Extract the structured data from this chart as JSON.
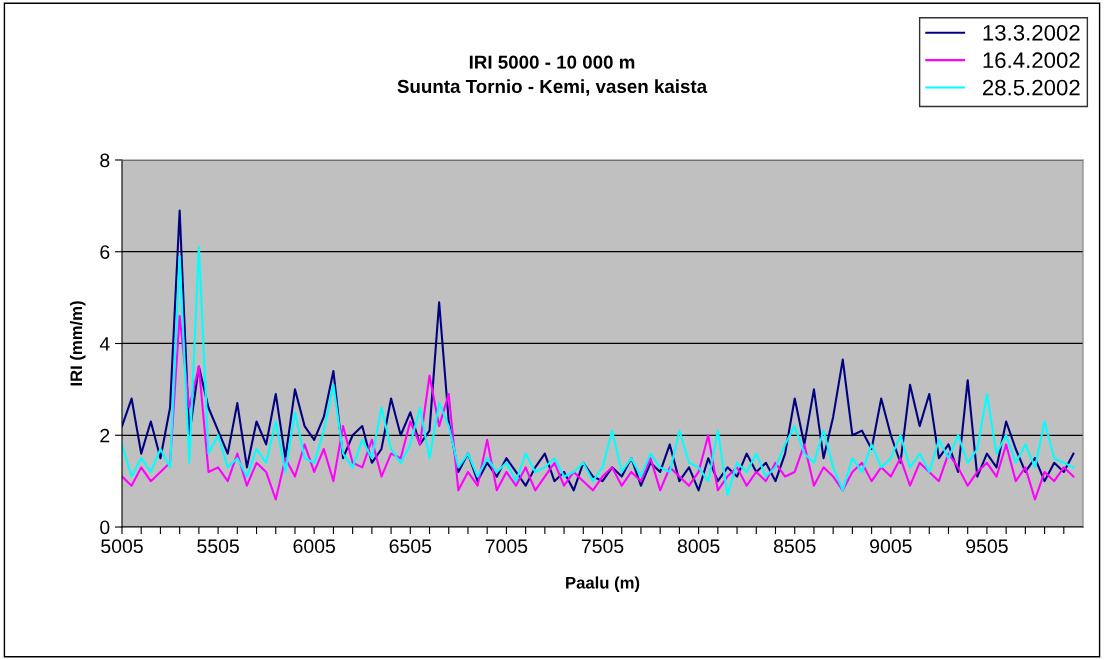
{
  "chart_data": {
    "type": "line",
    "title": "IRI 5000 - 10 000 m\nSuunta Tornio - Kemi, vasen kaista",
    "xlabel": "Paalu (m)",
    "ylabel": "IRI (mm/m)",
    "x": [
      5005,
      5055,
      5105,
      5155,
      5205,
      5255,
      5305,
      5355,
      5405,
      5455,
      5505,
      5555,
      5605,
      5655,
      5705,
      5755,
      5805,
      5855,
      5905,
      5955,
      6005,
      6055,
      6105,
      6155,
      6205,
      6255,
      6305,
      6355,
      6405,
      6455,
      6505,
      6555,
      6605,
      6655,
      6705,
      6755,
      6805,
      6855,
      6905,
      6955,
      7005,
      7055,
      7105,
      7155,
      7205,
      7255,
      7305,
      7355,
      7405,
      7455,
      7505,
      7555,
      7605,
      7655,
      7705,
      7755,
      7805,
      7855,
      7905,
      7955,
      8005,
      8055,
      8105,
      8155,
      8205,
      8255,
      8305,
      8355,
      8405,
      8455,
      8505,
      8555,
      8605,
      8655,
      8705,
      8755,
      8805,
      8855,
      8905,
      8955,
      9005,
      9055,
      9105,
      9155,
      9205,
      9255,
      9305,
      9355,
      9405,
      9455,
      9505,
      9555,
      9605,
      9655,
      9705,
      9755,
      9805,
      9855,
      9905,
      9955
    ],
    "series": [
      {
        "name": "13.3.2002",
        "color": "#000080",
        "values": [
          2.2,
          2.8,
          1.6,
          2.3,
          1.5,
          2.6,
          6.9,
          2.0,
          3.5,
          2.6,
          2.1,
          1.6,
          2.7,
          1.3,
          2.3,
          1.8,
          2.9,
          1.5,
          3.0,
          2.2,
          1.9,
          2.4,
          3.4,
          1.5,
          2.0,
          2.2,
          1.4,
          1.7,
          2.8,
          2.0,
          2.5,
          1.8,
          2.1,
          4.9,
          2.3,
          1.2,
          1.6,
          1.0,
          1.4,
          1.1,
          1.5,
          1.2,
          0.9,
          1.3,
          1.6,
          1.0,
          1.2,
          0.8,
          1.4,
          1.1,
          1.0,
          1.3,
          1.1,
          1.5,
          0.9,
          1.4,
          1.2,
          1.8,
          1.0,
          1.3,
          0.8,
          1.5,
          1.0,
          1.3,
          1.1,
          1.6,
          1.2,
          1.4,
          1.0,
          1.6,
          2.8,
          1.8,
          3.0,
          1.5,
          2.4,
          3.65,
          2.0,
          2.1,
          1.7,
          2.8,
          2.0,
          1.4,
          3.1,
          2.2,
          2.9,
          1.5,
          1.8,
          1.2,
          3.2,
          1.1,
          1.6,
          1.3,
          2.3,
          1.7,
          1.2,
          1.5,
          1.0,
          1.4,
          1.2,
          1.6
        ]
      },
      {
        "name": "16.4.2002",
        "color": "#ff00ff",
        "values": [
          1.1,
          0.9,
          1.3,
          1.0,
          1.2,
          1.4,
          4.6,
          2.6,
          3.5,
          1.2,
          1.3,
          1.0,
          1.6,
          0.9,
          1.4,
          1.2,
          0.6,
          1.5,
          1.1,
          1.8,
          1.2,
          1.7,
          1.0,
          2.2,
          1.4,
          1.3,
          1.9,
          1.1,
          1.6,
          1.5,
          2.3,
          1.8,
          3.3,
          2.2,
          2.9,
          0.8,
          1.2,
          0.9,
          1.9,
          0.8,
          1.2,
          0.9,
          1.3,
          0.8,
          1.1,
          1.4,
          0.9,
          1.2,
          1.0,
          0.8,
          1.1,
          1.3,
          0.9,
          1.2,
          1.0,
          1.5,
          0.8,
          1.3,
          1.1,
          0.9,
          1.2,
          2.0,
          0.8,
          1.1,
          1.3,
          0.9,
          1.2,
          1.0,
          1.4,
          1.1,
          1.2,
          1.8,
          0.9,
          1.3,
          1.1,
          0.8,
          1.2,
          1.4,
          1.0,
          1.3,
          1.1,
          1.5,
          0.9,
          1.4,
          1.2,
          1.0,
          1.6,
          1.3,
          0.9,
          1.2,
          1.4,
          1.1,
          1.8,
          1.0,
          1.3,
          0.6,
          1.2,
          1.0,
          1.3,
          1.1
        ]
      },
      {
        "name": "28.5.2002",
        "color": "#00ffff",
        "values": [
          1.8,
          1.1,
          1.5,
          1.2,
          1.7,
          1.3,
          5.9,
          1.4,
          6.1,
          1.6,
          2.0,
          1.3,
          1.5,
          1.1,
          1.7,
          1.4,
          2.3,
          1.2,
          2.5,
          1.5,
          1.4,
          2.1,
          3.1,
          1.6,
          1.3,
          1.9,
          1.5,
          2.6,
          1.7,
          1.4,
          1.8,
          2.6,
          1.5,
          2.7,
          2.2,
          1.3,
          1.6,
          1.1,
          1.5,
          1.2,
          1.4,
          1.0,
          1.6,
          1.2,
          1.3,
          1.5,
          1.1,
          1.2,
          1.4,
          1.0,
          1.3,
          2.1,
          1.2,
          1.5,
          1.1,
          1.6,
          1.3,
          1.2,
          2.1,
          1.4,
          1.3,
          1.0,
          2.1,
          0.7,
          1.4,
          1.2,
          1.6,
          1.1,
          1.3,
          1.8,
          2.2,
          1.6,
          1.4,
          2.1,
          1.3,
          0.8,
          1.5,
          1.2,
          1.8,
          1.3,
          1.5,
          2.0,
          1.3,
          1.6,
          1.2,
          1.9,
          1.5,
          2.0,
          1.4,
          1.7,
          2.9,
          1.6,
          2.0,
          1.4,
          1.8,
          1.3,
          2.3,
          1.5,
          1.4,
          1.3
        ]
      }
    ],
    "xlim": [
      5005,
      10005
    ],
    "xticks": [
      5005,
      {
        "value": 5105,
        "label": null
      },
      {
        "value": 5205,
        "label": null
      },
      {
        "value": 5305,
        "label": null
      },
      {
        "value": 5405,
        "label": null
      },
      5505,
      {
        "value": 5605,
        "label": null
      },
      {
        "value": 5705,
        "label": null
      },
      {
        "value": 5805,
        "label": null
      },
      {
        "value": 5905,
        "label": null
      },
      6005,
      {
        "value": 6105,
        "label": null
      },
      {
        "value": 6205,
        "label": null
      },
      {
        "value": 6305,
        "label": null
      },
      {
        "value": 6405,
        "label": null
      },
      6505,
      {
        "value": 6605,
        "label": null
      },
      {
        "value": 6705,
        "label": null
      },
      {
        "value": 6805,
        "label": null
      },
      {
        "value": 6905,
        "label": null
      },
      7005,
      {
        "value": 7105,
        "label": null
      },
      {
        "value": 7205,
        "label": null
      },
      {
        "value": 7305,
        "label": null
      },
      {
        "value": 7405,
        "label": null
      },
      7505,
      {
        "value": 7605,
        "label": null
      },
      {
        "value": 7705,
        "label": null
      },
      {
        "value": 7805,
        "label": null
      },
      {
        "value": 7905,
        "label": null
      },
      8005,
      {
        "value": 8105,
        "label": null
      },
      {
        "value": 8205,
        "label": null
      },
      {
        "value": 8305,
        "label": null
      },
      {
        "value": 8405,
        "label": null
      },
      8505,
      {
        "value": 8605,
        "label": null
      },
      {
        "value": 8705,
        "label": null
      },
      {
        "value": 8805,
        "label": null
      },
      {
        "value": 8905,
        "label": null
      },
      9005,
      {
        "value": 9105,
        "label": null
      },
      {
        "value": 9205,
        "label": null
      },
      {
        "value": 9305,
        "label": null
      },
      {
        "value": 9405,
        "label": null
      },
      9505,
      {
        "value": 9605,
        "label": null
      },
      {
        "value": 9705,
        "label": null
      },
      {
        "value": 9805,
        "label": null
      },
      {
        "value": 9905,
        "label": null
      }
    ],
    "ylim": [
      0,
      8
    ],
    "yticks": [
      0,
      2,
      4,
      6,
      8
    ],
    "grid": "y",
    "legend": "top right",
    "marker": "none",
    "line_style": "solid"
  }
}
